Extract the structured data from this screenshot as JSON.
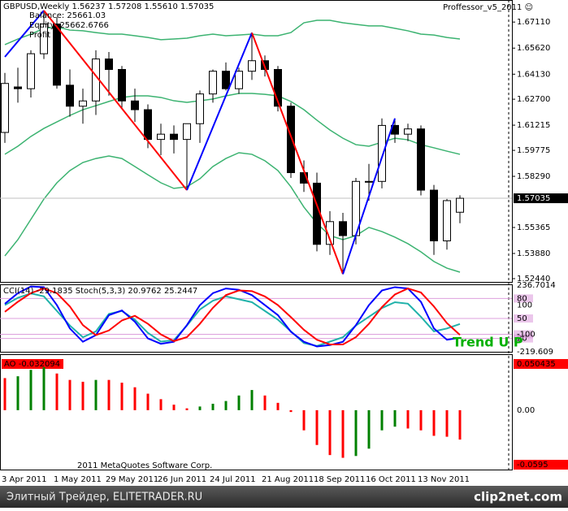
{
  "header": {
    "expert": "Proffessor_v5_2011 ☺",
    "balance": "Balance: 25661.03",
    "equity": "Equity: 25662.6766",
    "profit": "Profit"
  },
  "footer": {
    "site": "Элитный Трейдер, ELITETRADER.RU",
    "brand": "clip2net.com"
  },
  "chart_data": [
    {
      "type": "candlestick",
      "title": "GBPUSD,Weekly  1.56237 1.57208 1.55610 1.57035",
      "categories": [
        "3 Apr 2011",
        null,
        null,
        null,
        "1 May 2011",
        null,
        null,
        null,
        "29 May 2011",
        null,
        null,
        null,
        "26 Jun 2011",
        null,
        null,
        null,
        "24 Jul 2011",
        null,
        null,
        null,
        "21 Aug 2011",
        null,
        null,
        null,
        "18 Sep 2011",
        null,
        null,
        null,
        "16 Oct 2011",
        null,
        null,
        null,
        "13 Nov 2011",
        null,
        null,
        null
      ],
      "open": [
        1.608,
        1.634,
        1.633,
        1.653,
        1.67,
        1.635,
        1.623,
        1.626,
        1.65,
        1.644,
        1.626,
        1.621,
        1.604,
        1.607,
        1.604,
        1.613,
        1.63,
        1.643,
        1.633,
        1.643,
        1.649,
        1.644,
        1.623,
        1.585,
        1.579,
        1.544,
        1.557,
        1.549,
        1.58,
        1.58,
        1.612,
        1.607,
        1.61,
        1.575,
        1.546,
        1.56237
      ],
      "high": [
        1.642,
        1.645,
        1.655,
        1.6777,
        1.674,
        1.644,
        1.633,
        1.655,
        1.654,
        1.646,
        1.633,
        1.624,
        1.613,
        1.612,
        1.613,
        1.632,
        1.644,
        1.648,
        1.645,
        1.665,
        1.652,
        1.646,
        1.625,
        1.592,
        1.585,
        1.563,
        1.562,
        1.582,
        1.59,
        1.616,
        1.616,
        1.613,
        1.612,
        1.578,
        1.57,
        1.57208
      ],
      "low": [
        1.602,
        1.625,
        1.628,
        1.65,
        1.633,
        1.617,
        1.613,
        1.618,
        1.629,
        1.622,
        1.614,
        1.599,
        1.595,
        1.596,
        1.575,
        1.602,
        1.625,
        1.632,
        1.63,
        1.638,
        1.64,
        1.62,
        1.582,
        1.574,
        1.54,
        1.538,
        1.527,
        1.544,
        1.569,
        1.576,
        1.602,
        1.603,
        1.572,
        1.538,
        1.541,
        1.5561
      ],
      "close": [
        1.636,
        1.633,
        1.653,
        1.67,
        1.635,
        1.623,
        1.626,
        1.65,
        1.644,
        1.626,
        1.621,
        1.604,
        1.607,
        1.604,
        1.613,
        1.63,
        1.643,
        1.633,
        1.643,
        1.649,
        1.644,
        1.623,
        1.585,
        1.579,
        1.544,
        1.557,
        1.549,
        1.58,
        1.58,
        1.612,
        1.607,
        1.61,
        1.575,
        1.546,
        1.569,
        1.57035
      ],
      "up_color": "#ffffff",
      "down_color": "#000000",
      "bands": [
        {
          "color": "#3cb371",
          "values": [
            1.6582,
            1.6614,
            1.6642,
            1.6675,
            1.6684,
            1.6665,
            1.6661,
            1.6651,
            1.6642,
            1.6642,
            1.6633,
            1.6623,
            1.661,
            1.6614,
            1.6619,
            1.6633,
            1.6642,
            1.6633,
            1.6637,
            1.6642,
            1.6633,
            1.6633,
            1.6651,
            1.6707,
            1.6721,
            1.6721,
            1.6707,
            1.6698,
            1.6689,
            1.6689,
            1.6675,
            1.6661,
            1.6642,
            1.6637,
            1.6623,
            1.6614
          ]
        },
        {
          "color": "#3cb371",
          "values": [
            1.5955,
            1.6001,
            1.6057,
            1.6103,
            1.614,
            1.6177,
            1.621,
            1.6233,
            1.6257,
            1.628,
            1.6289,
            1.6289,
            1.628,
            1.6261,
            1.6252,
            1.6261,
            1.6271,
            1.6289,
            1.6303,
            1.6303,
            1.6298,
            1.6289,
            1.6257,
            1.621,
            1.615,
            1.6094,
            1.6047,
            1.601,
            1.6001,
            1.6024,
            1.6047,
            1.6038,
            1.601,
            1.5992,
            1.5973,
            1.5955
          ]
        },
        {
          "color": "#3cb371",
          "values": [
            1.5374,
            1.5467,
            1.5583,
            1.5699,
            1.5792,
            1.5862,
            1.5908,
            1.5931,
            1.5945,
            1.5931,
            1.5885,
            1.5838,
            1.5792,
            1.576,
            1.5769,
            1.5815,
            1.5885,
            1.5931,
            1.5964,
            1.5955,
            1.5918,
            1.5862,
            1.5769,
            1.5653,
            1.556,
            1.549,
            1.5467,
            1.549,
            1.5537,
            1.5513,
            1.5481,
            1.5444,
            1.5397,
            1.5342,
            1.5304,
            1.5281
          ]
        }
      ],
      "zigzag": {
        "x": [
          0,
          3,
          14,
          19,
          26,
          30
        ],
        "values": [
          1.6512,
          1.6777,
          1.575,
          1.665,
          1.527,
          1.616
        ],
        "up_color": "#0000ff",
        "down_color": "#ff0000"
      },
      "last_price": {
        "value": 1.57035,
        "label": "1.57035"
      },
      "ylim": [
        1.523,
        1.68
      ],
      "yticks": [
        {
          "value": 1.6711,
          "label": "1.67110"
        },
        {
          "value": 1.6562,
          "label": "1.65620"
        },
        {
          "value": 1.6413,
          "label": "1.64130"
        },
        {
          "value": 1.627,
          "label": "1.62700"
        },
        1.61215,
        1.59775,
        {
          "value": 1.5829,
          "label": "1.58290"
        },
        1.55365,
        {
          "value": 1.5388,
          "label": "1.53880"
        },
        {
          "value": 1.5244,
          "label": "1.52440"
        }
      ]
    },
    {
      "type": "line",
      "title": "CCI(14) -29.1835  Stoch(5,3,3) 20.9762 25.2447",
      "series": [
        {
          "color": "#20b2aa",
          "axis": "y2",
          "values": [
            100,
            150,
            180,
            160,
            60,
            -40,
            -120,
            -80,
            40,
            60,
            0,
            -90,
            -150,
            -140,
            -40,
            70,
            130,
            160,
            140,
            120,
            60,
            0,
            -80,
            -160,
            -180,
            -150,
            -120,
            -40,
            20,
            80,
            120,
            110,
            20,
            -80,
            -60,
            -29.1835
          ]
        },
        {
          "color": "#0000ff",
          "values": [
            72,
            88,
            98,
            97,
            70,
            35,
            15,
            25,
            55,
            62,
            45,
            20,
            12,
            15,
            40,
            70,
            88,
            95,
            93,
            85,
            70,
            55,
            30,
            15,
            8,
            10,
            15,
            40,
            70,
            92,
            97,
            95,
            75,
            35,
            18,
            20.9762
          ]
        },
        {
          "color": "#ff0000",
          "values": [
            60,
            75,
            88,
            95,
            88,
            68,
            40,
            25,
            32,
            47,
            54,
            42,
            26,
            16,
            22,
            42,
            66,
            85,
            92,
            91,
            83,
            70,
            52,
            33,
            18,
            11,
            11,
            22,
            42,
            67,
            86,
            95,
            89,
            68,
            43,
            25.2447
          ]
        }
      ],
      "ylim": [
        0,
        100
      ],
      "yticks": [
        20,
        50,
        80
      ],
      "y2lim": [
        -219.609,
        236.7014
      ],
      "y2ticks": [
        -219.609,
        -100,
        100,
        236.7014
      ],
      "level_color": "#dda0dd",
      "annotation": "Trend U P",
      "annotation_color": "#00b000"
    },
    {
      "type": "bar",
      "title": "AO -0.032094",
      "values": [
        0.035,
        0.037,
        0.044,
        0.047,
        0.04,
        0.033,
        0.031,
        0.033,
        0.033,
        0.03,
        0.025,
        0.018,
        0.012,
        0.006,
        0.002,
        0.004,
        0.007,
        0.01,
        0.016,
        0.022,
        0.016,
        0.008,
        -0.002,
        -0.022,
        -0.038,
        -0.049,
        -0.052,
        -0.05,
        -0.042,
        -0.022,
        -0.018,
        -0.02,
        -0.022,
        -0.028,
        -0.029,
        -0.032094
      ],
      "up_color": "#008000",
      "down_color": "#ff0000",
      "ylim": [
        -0.0595,
        0.050435
      ],
      "yticks": [
        -0.0595,
        {
          "value": 0,
          "label": "0.00"
        },
        0.050435
      ],
      "footnote": "2011 MetaQuotes Software Corp."
    }
  ]
}
